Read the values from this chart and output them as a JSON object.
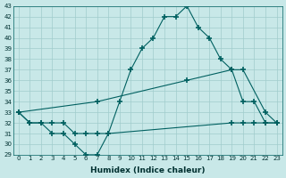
{
  "xlabel": "Humidex (Indice chaleur)",
  "bg_color": "#c8e8e8",
  "line_color": "#006060",
  "y_min": 29,
  "y_max": 43,
  "line1": {
    "x": [
      0,
      1,
      2,
      3,
      4,
      5,
      6,
      7,
      8,
      9,
      10,
      11,
      12,
      13,
      14,
      15,
      16,
      17,
      18,
      19,
      20,
      21,
      22,
      23
    ],
    "y": [
      33,
      32,
      32,
      31,
      31,
      30,
      29,
      29,
      31,
      34,
      37,
      39,
      40,
      42,
      42,
      43,
      41,
      40,
      38,
      37,
      34,
      34,
      32,
      32
    ]
  },
  "line2": {
    "x": [
      0,
      7,
      15,
      19,
      20,
      22,
      23
    ],
    "y": [
      33,
      34,
      36,
      37,
      37,
      33,
      32
    ]
  },
  "line3": {
    "x": [
      0,
      1,
      2,
      3,
      4,
      5,
      6,
      7,
      8,
      19,
      20,
      21,
      22,
      23
    ],
    "y": [
      33,
      32,
      32,
      32,
      32,
      31,
      31,
      31,
      31,
      32,
      32,
      32,
      32,
      32
    ]
  }
}
